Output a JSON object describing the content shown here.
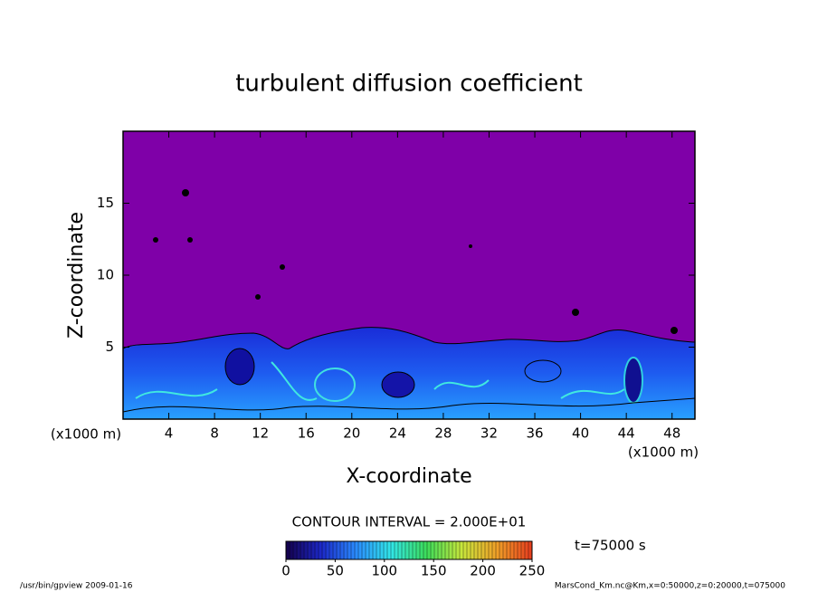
{
  "chart_data": {
    "type": "contour",
    "title": "turbulent diffusion coefficient",
    "xlabel": "X-coordinate",
    "ylabel": "Z-coordinate",
    "x_unit": "(x1000 m)",
    "xlim": [
      0,
      50
    ],
    "xticks": [
      4,
      8,
      12,
      16,
      20,
      24,
      28,
      32,
      36,
      40,
      44,
      48
    ],
    "ylim": [
      0,
      20
    ],
    "yticks": [
      5,
      10,
      15
    ],
    "background_color": "#7f00a8",
    "contour_interval": "CONTOUR INTERVAL = 2.000E+01",
    "time_label": "t=75000 s",
    "colorbar_lim": [
      0,
      250
    ],
    "colorbar_ticks": [
      0,
      50,
      100,
      150,
      200,
      250
    ],
    "colormap": [
      "#14004a",
      "#1c28c8",
      "#2a8cff",
      "#32e6e6",
      "#3cdc5a",
      "#c8e63c",
      "#f0a028",
      "#e63c1e"
    ],
    "footer_left": "/usr/bin/gpview  2009-01-16",
    "footer_right": "MarsCond_Km.nc@Km,x=0:50000,z=0:20000,t=075000"
  }
}
